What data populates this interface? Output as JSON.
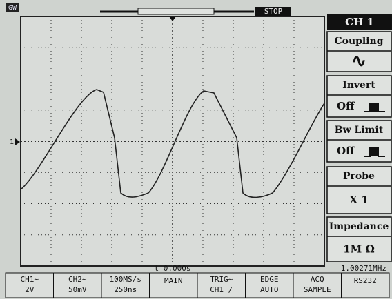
{
  "header": {
    "logo": "GW",
    "status": "STOP"
  },
  "channel_marker": "1",
  "menu": {
    "title": "CH 1",
    "items": [
      {
        "label": "Coupling",
        "value": "∿"
      },
      {
        "label": "Invert",
        "value": "Off"
      },
      {
        "label": "Bw Limit",
        "value": "Off"
      },
      {
        "label": "Probe",
        "value": "X 1"
      },
      {
        "label": "Impedance",
        "value": "1M Ω"
      }
    ]
  },
  "status_bar": {
    "time": "t 0.000s",
    "frequency": "1.00271MHz",
    "cells": [
      [
        "CH1∼",
        "2V"
      ],
      [
        "CH2∼",
        "50mV"
      ],
      [
        "100MS/s",
        "250ns"
      ],
      [
        "MAIN"
      ],
      [
        "TRIG∼",
        "CH1 /"
      ],
      [
        "EDGE",
        "AUTO"
      ],
      [
        "ACQ",
        "SAMPLE"
      ],
      [
        "RS232"
      ]
    ]
  }
}
